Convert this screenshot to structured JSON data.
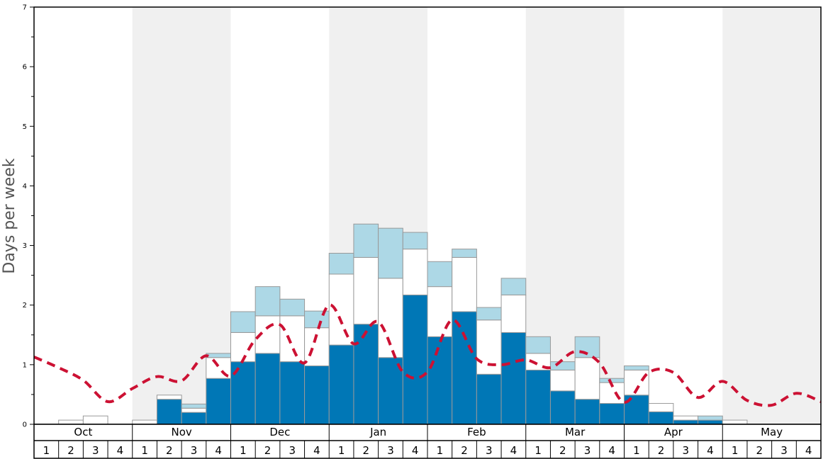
{
  "chart_data": {
    "type": "bar",
    "ylabel": "Days per week",
    "ylim": [
      0,
      7
    ],
    "yticks": [
      0,
      1,
      2,
      3,
      4,
      5,
      6,
      7
    ],
    "months": [
      "Oct",
      "Nov",
      "Dec",
      "Jan",
      "Feb",
      "Mar",
      "Apr",
      "May"
    ],
    "week_labels": [
      "1",
      "2",
      "3",
      "4"
    ],
    "shaded_months": [
      "Nov",
      "Jan",
      "Mar",
      "May"
    ],
    "colors": {
      "dark": "#0077b6",
      "white": "#ffffff",
      "light": "#add8e6",
      "line": "#cc1133",
      "shade": "#f0f0f0",
      "bar_stroke": "#999999"
    },
    "series": [
      {
        "kind": "stacked-dark",
        "values": [
          0,
          0,
          0,
          0,
          0,
          0.42,
          0.2,
          0.77,
          1.05,
          1.19,
          1.05,
          0.98,
          1.33,
          1.68,
          1.12,
          2.17,
          1.47,
          1.89,
          0.84,
          1.54,
          0.91,
          0.56,
          0.42,
          0.35,
          0.49,
          0.21,
          0.07,
          0.07,
          0,
          0,
          0,
          0
        ]
      },
      {
        "kind": "stacked-white",
        "values": [
          0,
          0.07,
          0.14,
          0,
          0.07,
          0.07,
          0.07,
          0.35,
          0.49,
          0.63,
          0.77,
          0.64,
          1.19,
          1.12,
          1.33,
          0.77,
          0.84,
          0.91,
          0.91,
          0.63,
          0.28,
          0.35,
          0.7,
          0.35,
          0.42,
          0.14,
          0.07,
          0,
          0.07,
          0,
          0,
          0
        ]
      },
      {
        "kind": "stacked-light",
        "values": [
          0,
          0,
          0,
          0,
          0,
          0,
          0.07,
          0.07,
          0.35,
          0.49,
          0.28,
          0.28,
          0.35,
          0.56,
          0.84,
          0.28,
          0.42,
          0.14,
          0.21,
          0.28,
          0.28,
          0.14,
          0.35,
          0.07,
          0.07,
          0,
          0,
          0.07,
          0,
          0,
          0,
          0
        ]
      },
      {
        "kind": "line",
        "values": [
          1.13,
          0.95,
          0.74,
          0.38,
          0.6,
          0.8,
          0.73,
          1.15,
          0.81,
          1.42,
          1.67,
          1.03,
          2.0,
          1.35,
          1.72,
          0.88,
          0.88,
          1.75,
          1.1,
          1.0,
          1.08,
          0.95,
          1.22,
          1.03,
          0.37,
          0.87,
          0.87,
          0.45,
          0.72,
          0.4,
          0.32,
          0.52,
          0.38
        ]
      }
    ]
  }
}
